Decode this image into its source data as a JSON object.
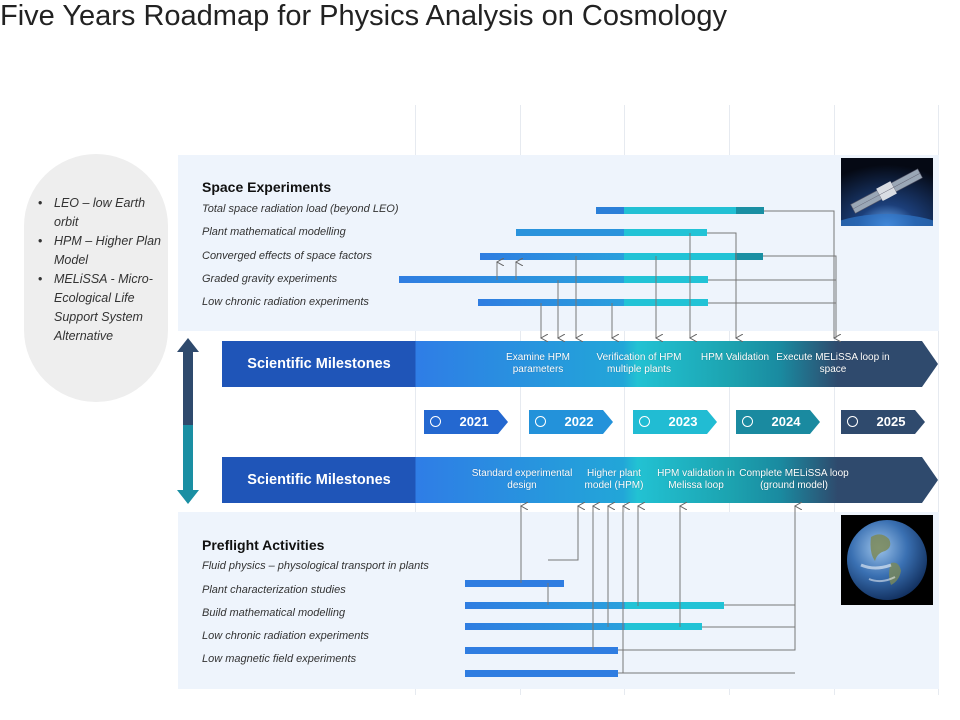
{
  "title": "Five Years Roadmap for Physics Analysis on Cosmology",
  "legend": [
    "LEO – low Earth orbit",
    "HPM – Higher Plan Model",
    "MELiSSA - Micro-Ecological Life Support System Alternative"
  ],
  "space_experiments": {
    "title": "Space Experiments",
    "items": [
      "Total space radiation load (beyond LEO)",
      "Plant mathematical modelling",
      "Converged effects of space factors",
      "Graded gravity experiments",
      "Low chronic radiation experiments"
    ]
  },
  "milestones_top": {
    "label": "Scientific Milestones",
    "items": [
      "Examine HPM parameters",
      "Verification of HPM multiple plants",
      "HPM Validation",
      "Execute MELiSSA loop in space"
    ]
  },
  "years": [
    "2021",
    "2022",
    "2023",
    "2024",
    "2025"
  ],
  "milestones_bottom": {
    "label": "Scientific Milestones",
    "items": [
      "Standard experimental design",
      "Higher plant model (HPM)",
      "HPM validation in Melissa loop",
      "Complete MELiSSA loop (ground model)"
    ]
  },
  "preflight": {
    "title": "Preflight Activities",
    "items": [
      "Fluid physics – physological transport in plants",
      "Plant characterization studies",
      "Build mathematical modelling",
      "Low chronic radiation experiments",
      "Low magnetic field experiments"
    ]
  },
  "images": {
    "top": "satellite-image",
    "bottom": "earth-image"
  },
  "colors": {
    "blue": "#2f7de1",
    "light_blue": "#2aa0dd",
    "cyan": "#22c3d6",
    "teal": "#1a8fa3",
    "navy": "#2f4a6d",
    "band_label": "#1f55b8"
  }
}
